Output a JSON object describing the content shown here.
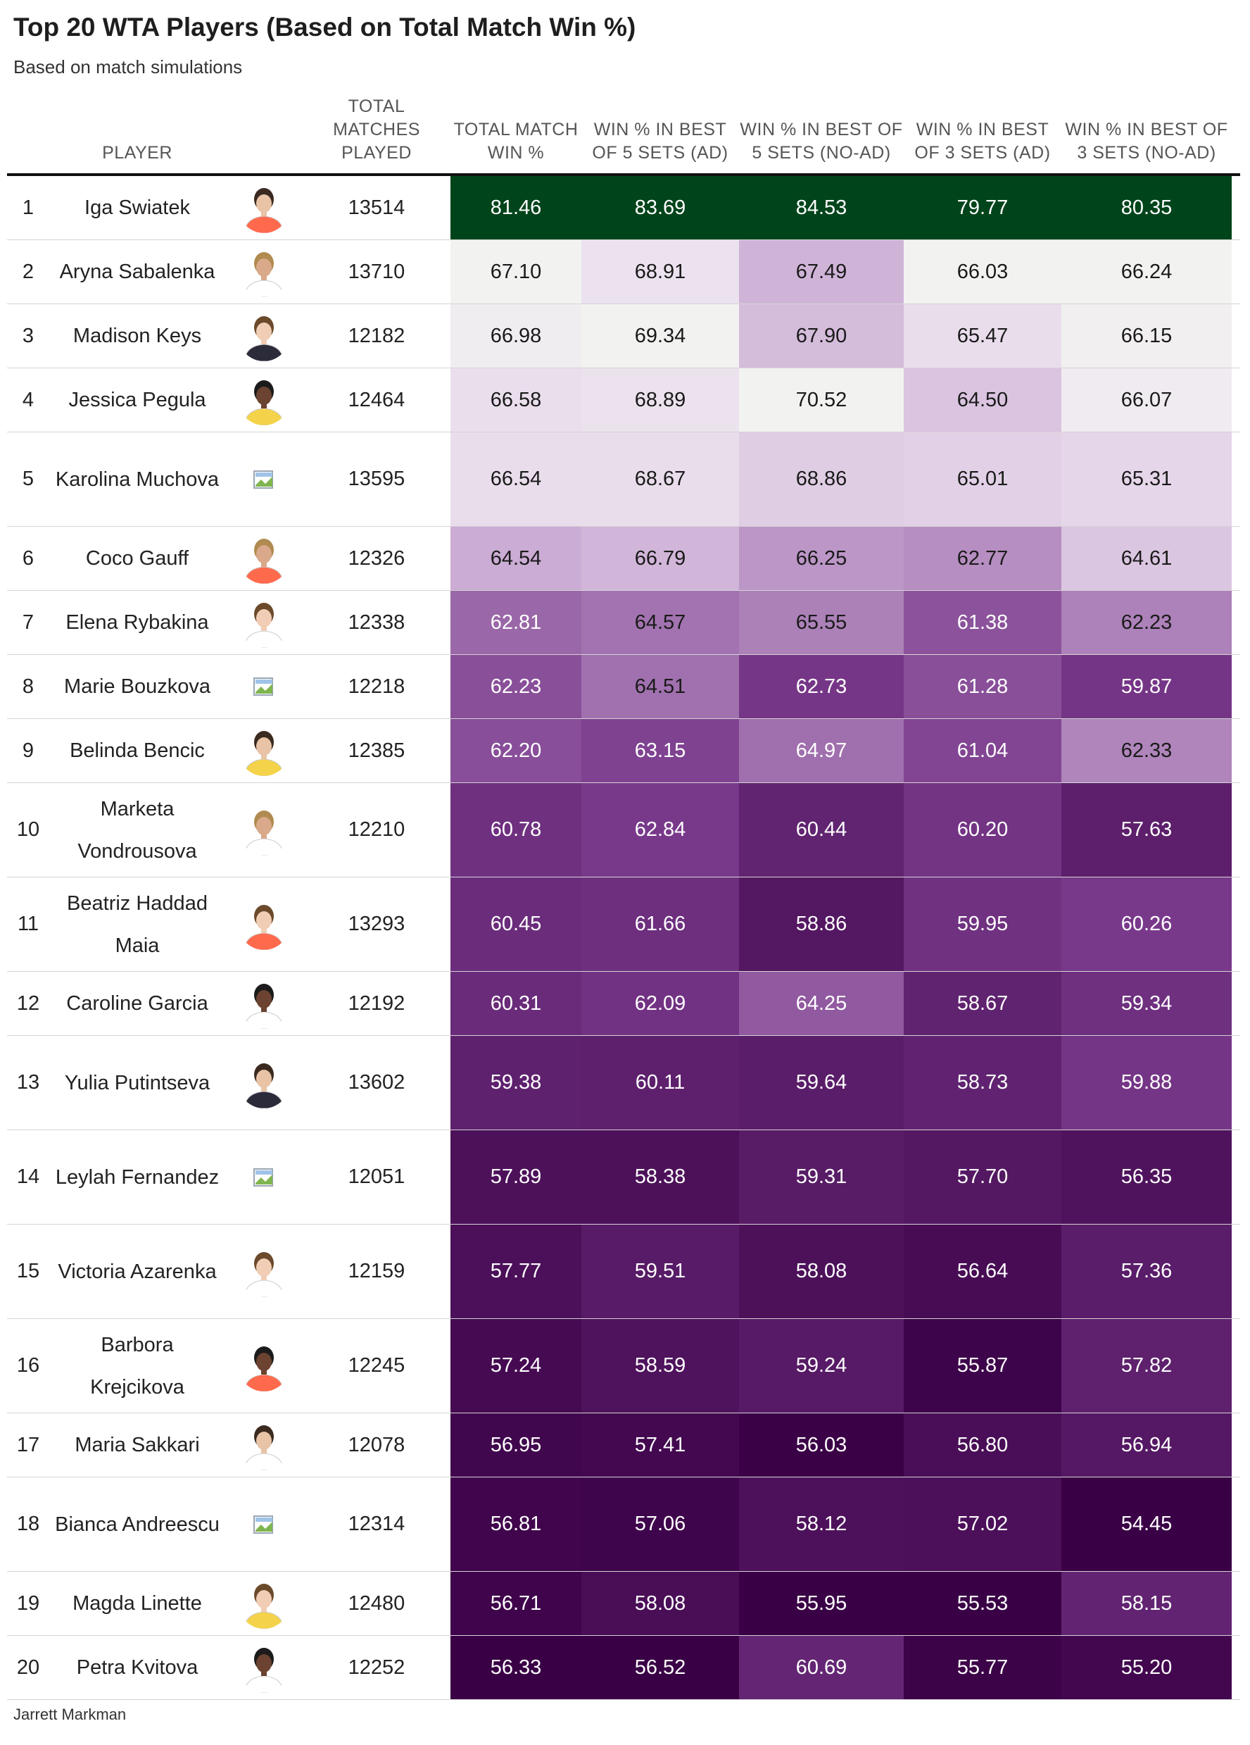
{
  "title": "Top 20 WTA Players (Based on Total Match Win %)",
  "subtitle": "Based on match simulations",
  "footer": "Jarrett Markman",
  "headers": {
    "player": "PLAYER",
    "matches": "TOTAL MATCHES PLAYED",
    "total": "TOTAL MATCH WIN %",
    "bo5_ad": "WIN % IN BEST OF 5 SETS (AD)",
    "bo5_noad": "WIN % IN BEST OF 5 SETS (NO-AD)",
    "bo3_ad": "WIN % IN BEST OF 3 SETS (AD)",
    "bo3_noad": "WIN % IN BEST OF 3 SETS (NO-AD)"
  },
  "colors": {
    "scale_low": "#3a0046",
    "scale_mid": "#c9a9d2",
    "scale_near": "#ede3ef",
    "scale_top": "#f2f3f1",
    "top_row": "#00441b"
  },
  "chart_data": {
    "type": "table",
    "columns": [
      "rank",
      "player",
      "matches",
      "total",
      "bo5_ad",
      "bo5_noad",
      "bo3_ad",
      "bo3_noad"
    ],
    "rows": [
      {
        "rank": "1",
        "player": "Iga Swiatek",
        "matches": "13514",
        "total": "81.46",
        "bo5_ad": "83.69",
        "bo5_noad": "84.53",
        "bo3_ad": "79.77",
        "bo3_noad": "80.35",
        "photo": true
      },
      {
        "rank": "2",
        "player": "Aryna Sabalenka",
        "matches": "13710",
        "total": "67.10",
        "bo5_ad": "68.91",
        "bo5_noad": "67.49",
        "bo3_ad": "66.03",
        "bo3_noad": "66.24",
        "photo": true
      },
      {
        "rank": "3",
        "player": "Madison Keys",
        "matches": "12182",
        "total": "66.98",
        "bo5_ad": "69.34",
        "bo5_noad": "67.90",
        "bo3_ad": "65.47",
        "bo3_noad": "66.15",
        "photo": true
      },
      {
        "rank": "4",
        "player": "Jessica Pegula",
        "matches": "12464",
        "total": "66.58",
        "bo5_ad": "68.89",
        "bo5_noad": "70.52",
        "bo3_ad": "64.50",
        "bo3_noad": "66.07",
        "photo": true
      },
      {
        "rank": "5",
        "player": "Karolina Muchova",
        "matches": "13595",
        "total": "66.54",
        "bo5_ad": "68.67",
        "bo5_noad": "68.86",
        "bo3_ad": "65.01",
        "bo3_noad": "65.31",
        "photo": false
      },
      {
        "rank": "6",
        "player": "Coco Gauff",
        "matches": "12326",
        "total": "64.54",
        "bo5_ad": "66.79",
        "bo5_noad": "66.25",
        "bo3_ad": "62.77",
        "bo3_noad": "64.61",
        "photo": true
      },
      {
        "rank": "7",
        "player": "Elena Rybakina",
        "matches": "12338",
        "total": "62.81",
        "bo5_ad": "64.57",
        "bo5_noad": "65.55",
        "bo3_ad": "61.38",
        "bo3_noad": "62.23",
        "photo": true
      },
      {
        "rank": "8",
        "player": "Marie Bouzkova",
        "matches": "12218",
        "total": "62.23",
        "bo5_ad": "64.51",
        "bo5_noad": "62.73",
        "bo3_ad": "61.28",
        "bo3_noad": "59.87",
        "photo": false
      },
      {
        "rank": "9",
        "player": "Belinda Bencic",
        "matches": "12385",
        "total": "62.20",
        "bo5_ad": "63.15",
        "bo5_noad": "64.97",
        "bo3_ad": "61.04",
        "bo3_noad": "62.33",
        "photo": true
      },
      {
        "rank": "10",
        "player": "Marketa Vondrousova",
        "matches": "12210",
        "total": "60.78",
        "bo5_ad": "62.84",
        "bo5_noad": "60.44",
        "bo3_ad": "60.20",
        "bo3_noad": "57.63",
        "photo": true
      },
      {
        "rank": "11",
        "player": "Beatriz Haddad Maia",
        "matches": "13293",
        "total": "60.45",
        "bo5_ad": "61.66",
        "bo5_noad": "58.86",
        "bo3_ad": "59.95",
        "bo3_noad": "60.26",
        "photo": true
      },
      {
        "rank": "12",
        "player": "Caroline Garcia",
        "matches": "12192",
        "total": "60.31",
        "bo5_ad": "62.09",
        "bo5_noad": "64.25",
        "bo3_ad": "58.67",
        "bo3_noad": "59.34",
        "photo": true
      },
      {
        "rank": "13",
        "player": "Yulia Putintseva",
        "matches": "13602",
        "total": "59.38",
        "bo5_ad": "60.11",
        "bo5_noad": "59.64",
        "bo3_ad": "58.73",
        "bo3_noad": "59.88",
        "photo": true
      },
      {
        "rank": "14",
        "player": "Leylah Fernandez",
        "matches": "12051",
        "total": "57.89",
        "bo5_ad": "58.38",
        "bo5_noad": "59.31",
        "bo3_ad": "57.70",
        "bo3_noad": "56.35",
        "photo": false
      },
      {
        "rank": "15",
        "player": "Victoria Azarenka",
        "matches": "12159",
        "total": "57.77",
        "bo5_ad": "59.51",
        "bo5_noad": "58.08",
        "bo3_ad": "56.64",
        "bo3_noad": "57.36",
        "photo": true
      },
      {
        "rank": "16",
        "player": "Barbora Krejcikova",
        "matches": "12245",
        "total": "57.24",
        "bo5_ad": "58.59",
        "bo5_noad": "59.24",
        "bo3_ad": "55.87",
        "bo3_noad": "57.82",
        "photo": true
      },
      {
        "rank": "17",
        "player": "Maria Sakkari",
        "matches": "12078",
        "total": "56.95",
        "bo5_ad": "57.41",
        "bo5_noad": "56.03",
        "bo3_ad": "56.80",
        "bo3_noad": "56.94",
        "photo": true
      },
      {
        "rank": "18",
        "player": "Bianca Andreescu",
        "matches": "12314",
        "total": "56.81",
        "bo5_ad": "57.06",
        "bo5_noad": "58.12",
        "bo3_ad": "57.02",
        "bo3_noad": "54.45",
        "photo": false
      },
      {
        "rank": "19",
        "player": "Magda Linette",
        "matches": "12480",
        "total": "56.71",
        "bo5_ad": "58.08",
        "bo5_noad": "55.95",
        "bo3_ad": "55.53",
        "bo3_noad": "58.15",
        "photo": true
      },
      {
        "rank": "20",
        "player": "Petra Kvitova",
        "matches": "12252",
        "total": "56.33",
        "bo5_ad": "56.52",
        "bo5_noad": "60.69",
        "bo3_ad": "55.77",
        "bo3_noad": "55.20",
        "photo": true
      }
    ]
  }
}
